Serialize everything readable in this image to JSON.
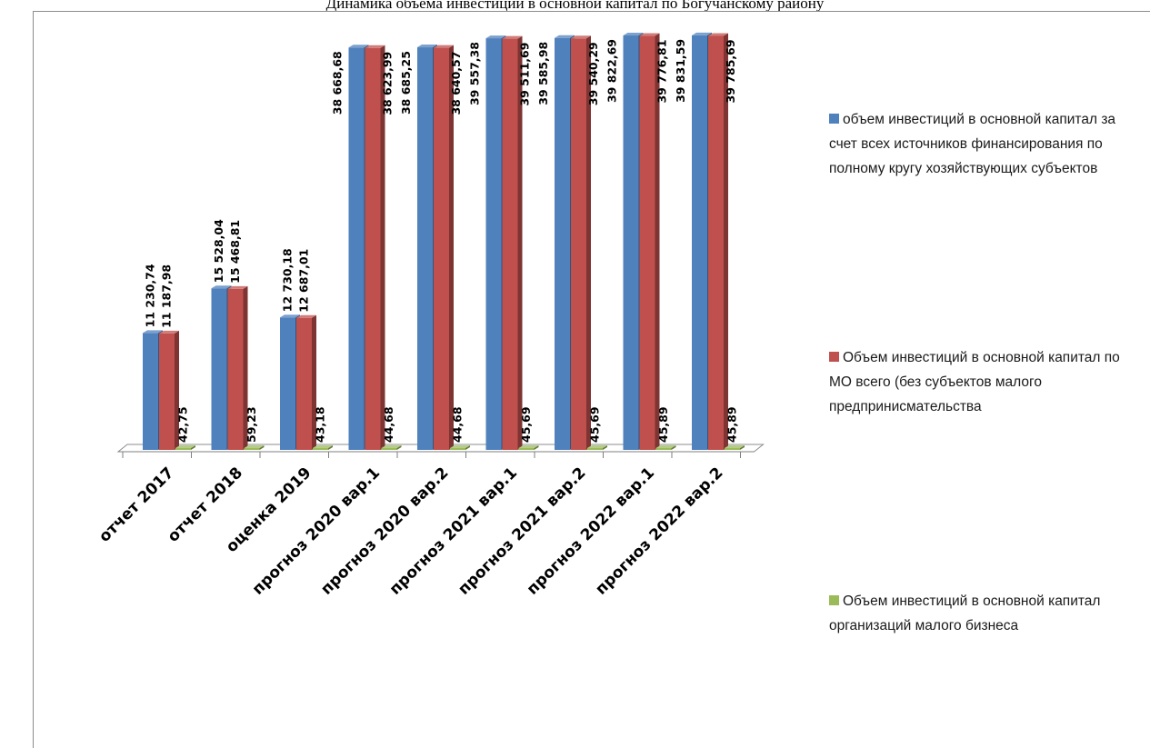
{
  "chart_data": {
    "type": "bar",
    "title": "Динамика объема инвестиций в основной капитал по Богучанскому району",
    "categories": [
      "отчет 2017",
      "отчет 2018",
      "оценка 2019",
      "прогноз 2020 вар.1",
      "прогноз 2020 вар.2",
      "прогноз 2021 вар.1",
      "прогноз 2021 вар.2",
      "прогноз 2022 вар.1",
      "прогноз 2022 вар.2"
    ],
    "series": [
      {
        "name": "объем инвестиций в основной капитал за счет всех источников финансирования по полному кругу хозяйствующих субъектов",
        "color": "#4f81bd",
        "values": [
          11230.74,
          15528.04,
          12730.18,
          38668.68,
          38685.25,
          39557.38,
          39585.98,
          39822.69,
          39831.59
        ],
        "labels": [
          "11 230,74",
          "15 528,04",
          "12 730,18",
          "38 668,68",
          "38 685,25",
          "39 557,38",
          "39 585,98",
          "39 822,69",
          "39 831,59"
        ]
      },
      {
        "name": "Объем инвестиций в основной капитал по МО всего (без субъектов малого предпринисмательства",
        "color": "#c0504d",
        "values": [
          11187.98,
          15468.81,
          12687.01,
          38623.99,
          38640.57,
          39511.69,
          39540.29,
          39776.81,
          39785.69
        ],
        "labels": [
          "11 187,98",
          "15 468,81",
          "12 687,01",
          "38 623,99",
          "38 640,57",
          "39 511,69",
          "39 540,29",
          "39 776,81",
          "39 785,69"
        ]
      },
      {
        "name": "Объем инвестиций в основной капитал организаций малого бизнеса",
        "color": "#9bbb59",
        "values": [
          42.75,
          59.23,
          43.18,
          44.68,
          44.68,
          45.69,
          45.69,
          45.89,
          45.89
        ],
        "labels": [
          "42,75",
          "59,23",
          "43,18",
          "44,68",
          "44,68",
          "45,69",
          "45,69",
          "45,89",
          "45,89"
        ]
      }
    ],
    "ylim": [
      0,
      40000
    ],
    "grid": false,
    "legend_position": "right"
  }
}
